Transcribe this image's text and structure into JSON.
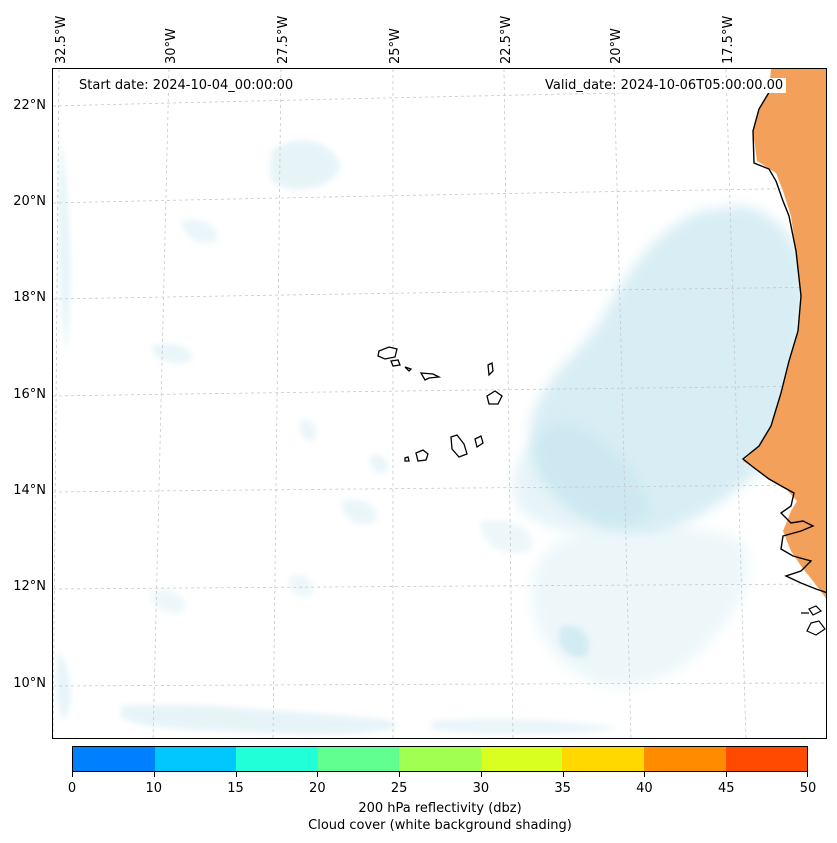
{
  "map": {
    "start_date": "Start date: 2024-10-04_00:00:00",
    "valid_date": "Valid_date: 2024-10-06T05:00:00.00",
    "lon_labels": [
      "32.5°W",
      "30°W",
      "27.5°W",
      "25°W",
      "22.5°W",
      "20°W",
      "17.5°W"
    ],
    "lat_labels": [
      "22°N",
      "20°N",
      "18°N",
      "16°N",
      "14°N",
      "12°N",
      "10°N"
    ],
    "land_color": "#f2a05a",
    "cloud_color": "#b9e0ec"
  },
  "colorbar": {
    "ticks": [
      "0",
      "10",
      "15",
      "20",
      "25",
      "30",
      "35",
      "40",
      "45",
      "50"
    ],
    "colors": [
      "#0080ff",
      "#00c8ff",
      "#20ffd8",
      "#60ff90",
      "#a0ff50",
      "#d8ff20",
      "#ffd800",
      "#ff8c00",
      "#ff4a00"
    ],
    "title_line1": "200 hPa reflectivity (dbz)",
    "title_line2": "Cloud cover (white background shading)"
  }
}
